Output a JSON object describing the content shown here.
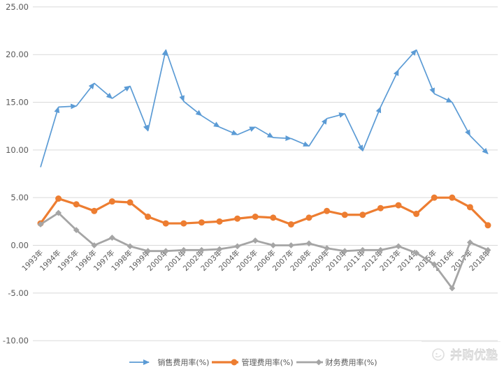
{
  "chart_data": {
    "type": "line",
    "title": "",
    "xlabel": "",
    "ylabel": "",
    "categories": [
      "1993年",
      "1994年",
      "1995年",
      "1996年",
      "1997年",
      "1998年",
      "1999年",
      "2000年",
      "2001年",
      "2002年",
      "2003年",
      "2004年",
      "2005年",
      "2006年",
      "2007年",
      "2008年",
      "2009年",
      "2010年",
      "2011年",
      "2012年",
      "2013年",
      "2014年",
      "2015年",
      "2016年",
      "2017年",
      "2018年"
    ],
    "series": [
      {
        "name": "销售费用率(%)",
        "color": "#5B9BD5",
        "marker": "arrow",
        "values": [
          8.2,
          14.5,
          14.6,
          17.0,
          15.4,
          16.7,
          12.0,
          20.5,
          15.1,
          13.6,
          12.4,
          11.6,
          12.4,
          11.3,
          11.2,
          10.4,
          13.3,
          13.8,
          9.9,
          14.5,
          18.4,
          20.5,
          15.9,
          15.0,
          11.5,
          9.6
        ]
      },
      {
        "name": "管理费用率(%)",
        "color": "#ED7D31",
        "marker": "circle",
        "values": [
          2.3,
          4.9,
          4.3,
          3.6,
          4.6,
          4.5,
          3.0,
          2.3,
          2.3,
          2.4,
          2.5,
          2.8,
          3.0,
          2.9,
          2.2,
          2.9,
          3.6,
          3.2,
          3.2,
          3.9,
          4.2,
          3.3,
          5.0,
          5.0,
          4.0,
          2.1
        ]
      },
      {
        "name": "财务费用率(%)",
        "color": "#A5A5A5",
        "marker": "diamond",
        "values": [
          2.2,
          3.4,
          1.6,
          0.0,
          0.8,
          -0.1,
          -0.6,
          -0.6,
          -0.5,
          -0.5,
          -0.4,
          -0.1,
          0.5,
          0.0,
          0.0,
          0.2,
          -0.3,
          -0.6,
          -0.5,
          -0.5,
          -0.1,
          -0.8,
          -2.0,
          -4.5,
          0.3,
          -0.5
        ]
      }
    ],
    "ylim": [
      -10,
      25
    ],
    "ytick_values": [
      25,
      20,
      15,
      10,
      5,
      0,
      -5,
      -10
    ],
    "ytick_labels": [
      "25.00",
      "20.00",
      "15.00",
      "10.00",
      "5.00",
      "0.00",
      "-5.00",
      "-10.00"
    ],
    "grid": true,
    "gridline_color": "#D9D9D9",
    "axis_text_color": "#595959",
    "legend_position": "bottom"
  },
  "watermark": {
    "text": "并购优塾"
  }
}
